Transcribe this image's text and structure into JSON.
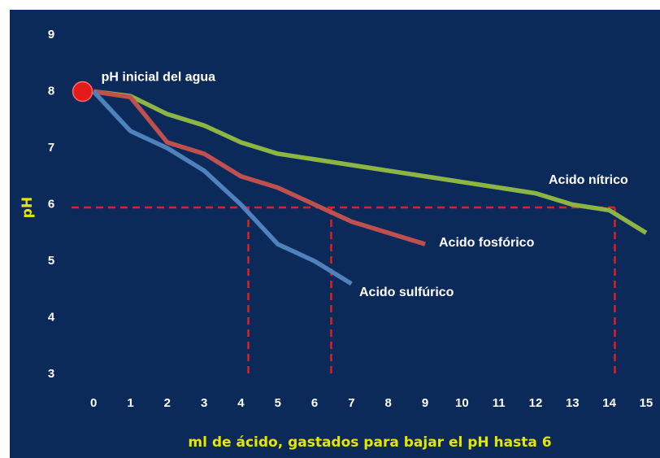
{
  "chart_data": {
    "type": "line",
    "x_label": "ml de ácido, gastados para bajar el pH hasta 6",
    "y_label": "pH",
    "x": [
      0,
      1,
      2,
      3,
      4,
      5,
      6,
      7,
      8,
      9,
      10,
      11,
      12,
      13,
      14,
      15
    ],
    "series": [
      {
        "name": "Acido nítrico",
        "color": "#8db543",
        "values": [
          8,
          7.92,
          7.6,
          7.4,
          7.1,
          6.9,
          6.8,
          6.7,
          6.6,
          6.5,
          6.4,
          6.3,
          6.2,
          6.0,
          5.9,
          5.5
        ]
      },
      {
        "name": "Acido fosfórico",
        "color": "#c0504d",
        "values": [
          8,
          7.9,
          7.1,
          6.9,
          6.5,
          6.3,
          6.0,
          5.7,
          5.5,
          5.3,
          null,
          null,
          null,
          null,
          null,
          null
        ]
      },
      {
        "name": "Acido sulfúrico",
        "color": "#4f81bd",
        "values": [
          8,
          7.3,
          7.0,
          6.6,
          6.0,
          5.3,
          5.0,
          4.6,
          null,
          null,
          null,
          null,
          null,
          null,
          null,
          null
        ]
      }
    ],
    "xlim": [
      -0.6,
      15.2
    ],
    "xticks": [
      0,
      1,
      2,
      3,
      4,
      5,
      6,
      7,
      8,
      9,
      10,
      11,
      12,
      13,
      14,
      15
    ],
    "ylim": [
      3,
      9
    ],
    "yticks": [
      3,
      4,
      5,
      6,
      7,
      8,
      9
    ],
    "grid": false,
    "reference_lines": {
      "color": "#e02020",
      "y": 5.95,
      "x": [
        4.2,
        6.45,
        14.15
      ]
    },
    "annotations": [
      {
        "text": "pH inicial del agua",
        "x": -0.3,
        "y": 8,
        "color": "#e31b1b"
      }
    ]
  }
}
